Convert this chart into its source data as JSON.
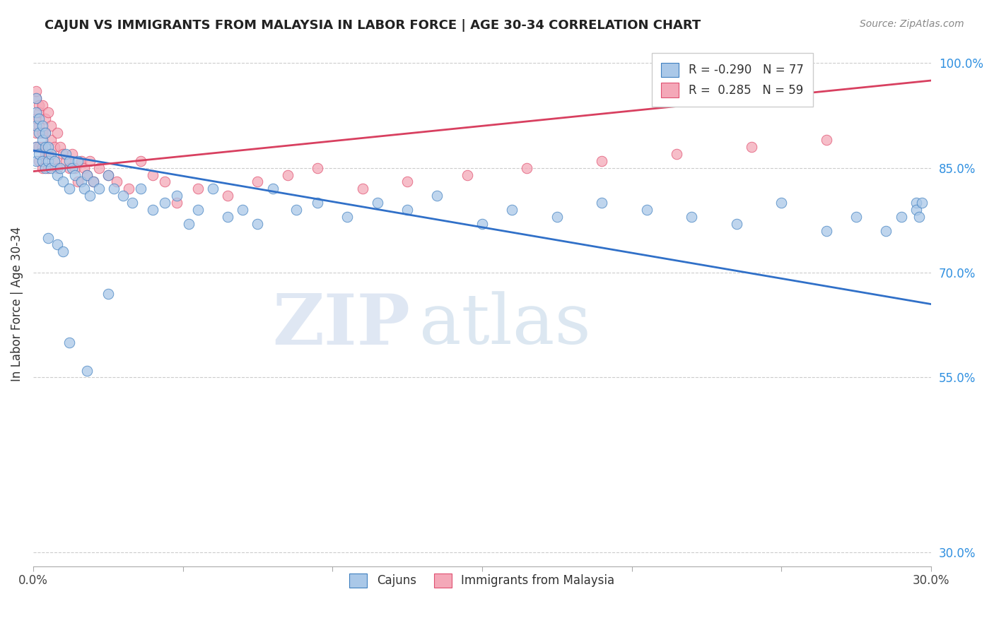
{
  "title": "CAJUN VS IMMIGRANTS FROM MALAYSIA IN LABOR FORCE | AGE 30-34 CORRELATION CHART",
  "source": "Source: ZipAtlas.com",
  "ylabel": "In Labor Force | Age 30-34",
  "xlim": [
    0.0,
    0.3
  ],
  "ylim": [
    0.28,
    1.03
  ],
  "xticks": [
    0.0,
    0.05,
    0.1,
    0.15,
    0.2,
    0.25,
    0.3
  ],
  "yticks_right": [
    1.0,
    0.85,
    0.7,
    0.55,
    0.3
  ],
  "ytick_right_labels": [
    "100.0%",
    "85.0%",
    "70.0%",
    "55.0%",
    "30.0%"
  ],
  "legend_r_blue": "-0.290",
  "legend_n_blue": "77",
  "legend_r_pink": "0.285",
  "legend_n_pink": "59",
  "blue_color": "#aac8e8",
  "pink_color": "#f4a8b8",
  "blue_edge_color": "#4080c0",
  "pink_edge_color": "#e05070",
  "blue_line_color": "#3070c8",
  "pink_line_color": "#d84060",
  "watermark_zip": "ZIP",
  "watermark_atlas": "atlas",
  "grid_color": "#cccccc",
  "background_color": "#ffffff",
  "blue_trend_x0": 0.0,
  "blue_trend_y0": 0.875,
  "blue_trend_x1": 0.3,
  "blue_trend_y1": 0.655,
  "pink_trend_x0": 0.0,
  "pink_trend_y0": 0.845,
  "pink_trend_x1": 0.3,
  "pink_trend_y1": 0.975,
  "cajun_x": [
    0.001,
    0.001,
    0.001,
    0.001,
    0.001,
    0.002,
    0.002,
    0.002,
    0.003,
    0.003,
    0.003,
    0.004,
    0.004,
    0.004,
    0.005,
    0.005,
    0.006,
    0.006,
    0.007,
    0.008,
    0.009,
    0.01,
    0.011,
    0.012,
    0.012,
    0.013,
    0.014,
    0.015,
    0.016,
    0.017,
    0.018,
    0.019,
    0.02,
    0.022,
    0.025,
    0.027,
    0.03,
    0.033,
    0.036,
    0.04,
    0.044,
    0.048,
    0.052,
    0.055,
    0.06,
    0.065,
    0.07,
    0.075,
    0.08,
    0.088,
    0.095,
    0.105,
    0.115,
    0.125,
    0.135,
    0.15,
    0.16,
    0.175,
    0.19,
    0.205,
    0.22,
    0.235,
    0.25,
    0.265,
    0.275,
    0.285,
    0.29,
    0.295,
    0.295,
    0.296,
    0.297,
    0.005,
    0.008,
    0.01,
    0.012,
    0.018,
    0.025
  ],
  "cajun_y": [
    0.88,
    0.91,
    0.86,
    0.93,
    0.95,
    0.87,
    0.9,
    0.92,
    0.86,
    0.89,
    0.91,
    0.85,
    0.88,
    0.9,
    0.86,
    0.88,
    0.87,
    0.85,
    0.86,
    0.84,
    0.85,
    0.83,
    0.87,
    0.82,
    0.86,
    0.85,
    0.84,
    0.86,
    0.83,
    0.82,
    0.84,
    0.81,
    0.83,
    0.82,
    0.84,
    0.82,
    0.81,
    0.8,
    0.82,
    0.79,
    0.8,
    0.81,
    0.77,
    0.79,
    0.82,
    0.78,
    0.79,
    0.77,
    0.82,
    0.79,
    0.8,
    0.78,
    0.8,
    0.79,
    0.81,
    0.77,
    0.79,
    0.78,
    0.8,
    0.79,
    0.78,
    0.77,
    0.8,
    0.76,
    0.78,
    0.76,
    0.78,
    0.8,
    0.79,
    0.78,
    0.8,
    0.75,
    0.74,
    0.73,
    0.6,
    0.56,
    0.67
  ],
  "malaysia_x": [
    0.001,
    0.001,
    0.001,
    0.001,
    0.001,
    0.002,
    0.002,
    0.002,
    0.002,
    0.002,
    0.003,
    0.003,
    0.003,
    0.003,
    0.004,
    0.004,
    0.004,
    0.005,
    0.005,
    0.005,
    0.006,
    0.006,
    0.007,
    0.007,
    0.008,
    0.008,
    0.009,
    0.01,
    0.011,
    0.012,
    0.013,
    0.014,
    0.015,
    0.016,
    0.017,
    0.018,
    0.019,
    0.02,
    0.022,
    0.025,
    0.028,
    0.032,
    0.036,
    0.04,
    0.044,
    0.048,
    0.055,
    0.065,
    0.075,
    0.085,
    0.095,
    0.11,
    0.125,
    0.145,
    0.165,
    0.19,
    0.215,
    0.24,
    0.265
  ],
  "malaysia_y": [
    0.9,
    0.95,
    0.92,
    0.88,
    0.96,
    0.91,
    0.94,
    0.88,
    0.93,
    0.86,
    0.9,
    0.94,
    0.88,
    0.85,
    0.92,
    0.87,
    0.9,
    0.93,
    0.87,
    0.85,
    0.89,
    0.91,
    0.86,
    0.88,
    0.85,
    0.9,
    0.88,
    0.87,
    0.86,
    0.85,
    0.87,
    0.85,
    0.83,
    0.86,
    0.85,
    0.84,
    0.86,
    0.83,
    0.85,
    0.84,
    0.83,
    0.82,
    0.86,
    0.84,
    0.83,
    0.8,
    0.82,
    0.81,
    0.83,
    0.84,
    0.85,
    0.82,
    0.83,
    0.84,
    0.85,
    0.86,
    0.87,
    0.88,
    0.89
  ]
}
